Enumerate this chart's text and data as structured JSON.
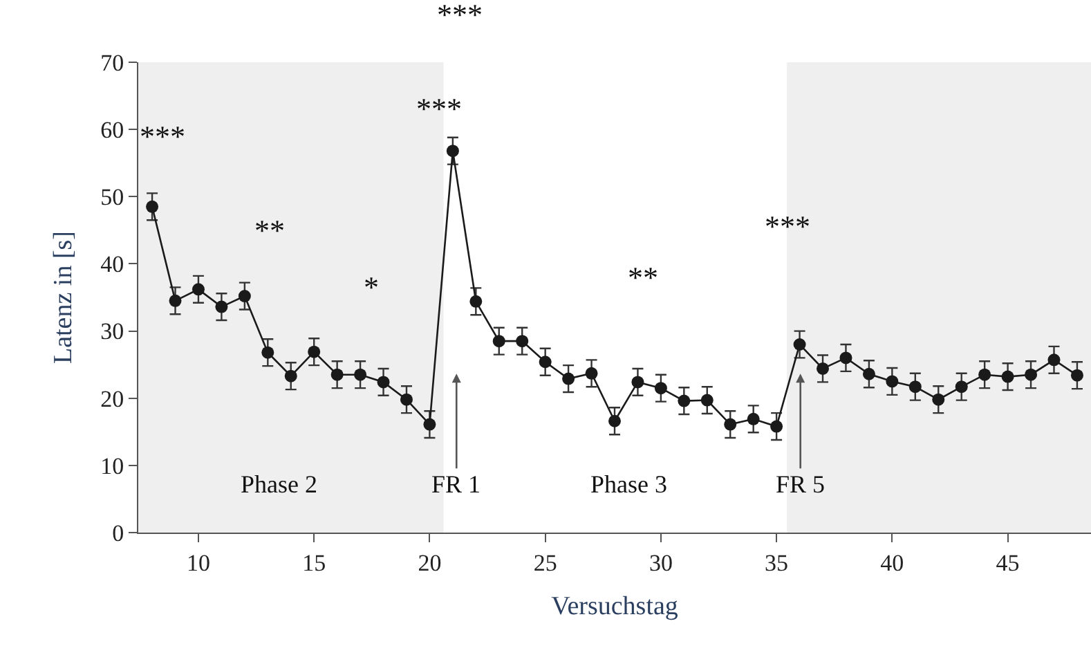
{
  "chart_data": {
    "type": "line",
    "xlabel": "Versuchstag",
    "ylabel": "Latenz in [s]",
    "xlim": [
      7.4,
      48.6
    ],
    "xticks": [
      10,
      15,
      20,
      25,
      30,
      35,
      40,
      45
    ],
    "ylim": [
      0,
      70
    ],
    "yticks": [
      0,
      10,
      20,
      30,
      40,
      50,
      60,
      70
    ],
    "grid": false,
    "marker": "circle",
    "line_style": "solid",
    "series": [
      {
        "color": "#1a1a1a",
        "x": [
          8,
          9,
          10,
          11,
          12,
          13,
          14,
          15,
          16,
          17,
          18,
          19,
          20,
          21,
          22,
          23,
          24,
          25,
          26,
          27,
          28,
          29,
          30,
          31,
          32,
          33,
          34,
          35,
          36,
          37,
          38,
          39,
          40,
          41,
          42,
          43,
          44,
          45,
          46,
          47,
          48
        ],
        "values": [
          48.5,
          34.5,
          36.2,
          33.6,
          35.2,
          26.8,
          23.3,
          26.9,
          23.5,
          23.5,
          22.4,
          19.8,
          16.1,
          56.8,
          34.4,
          28.5,
          28.5,
          25.4,
          22.9,
          23.7,
          16.6,
          22.4,
          21.5,
          19.6,
          19.7,
          16.1,
          16.9,
          15.8,
          28.0,
          24.4,
          26.0,
          23.6,
          22.5,
          21.7,
          19.8,
          21.7,
          23.5,
          23.2,
          23.5,
          25.7,
          23.4
        ],
        "errors": [
          2,
          2,
          2,
          2,
          2,
          2,
          2,
          2,
          2,
          2,
          2,
          2,
          2,
          2,
          2,
          2,
          2,
          2,
          2,
          2,
          2,
          2,
          2,
          2,
          2,
          2,
          2,
          2,
          2,
          2,
          2,
          2,
          2,
          2,
          2,
          2,
          2,
          2,
          2,
          2,
          2
        ]
      }
    ],
    "bands": [
      {
        "axis": "x",
        "from": 7.4,
        "to": 20.6,
        "color": "#efefef"
      },
      {
        "axis": "x",
        "from": 35.45,
        "to": 48.6,
        "color": "#efefef"
      }
    ],
    "annotations": [
      "***",
      "**",
      "*",
      "***",
      "***",
      "**",
      "***",
      "FR 1",
      "FR 5",
      "Phase 2",
      "Phase 3"
    ]
  }
}
